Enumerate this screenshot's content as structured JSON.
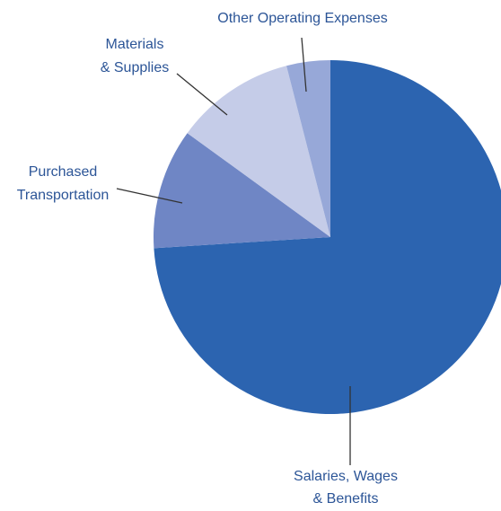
{
  "chart_data": {
    "type": "pie",
    "categories": [
      [
        "Salaries, Wages",
        "& Benefits"
      ],
      [
        "Purchased",
        "Transportation"
      ],
      [
        "Materials",
        "& Supplies"
      ],
      [
        "Other Operating Expenses"
      ]
    ],
    "values": [
      74,
      11,
      11,
      4
    ],
    "colors": [
      "#2c64b0",
      "#6f86c5",
      "#c5cce8",
      "#97a8d8"
    ]
  }
}
